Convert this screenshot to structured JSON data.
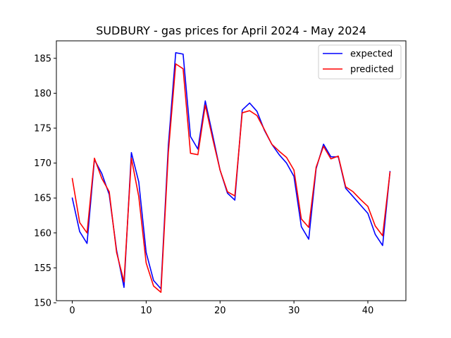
{
  "chart_data": {
    "type": "line",
    "title": "SUDBURY - gas prices for April 2024 - May 2024",
    "xlabel": "",
    "ylabel": "",
    "xlim": [
      -2.15,
      45.15
    ],
    "ylim": [
      150.3,
      187.5
    ],
    "x_ticks": [
      0,
      10,
      20,
      30,
      40
    ],
    "y_ticks": [
      150,
      155,
      160,
      165,
      170,
      175,
      180,
      185
    ],
    "grid": false,
    "legend_position": "top-right",
    "x": [
      0,
      1,
      2,
      3,
      4,
      5,
      6,
      7,
      8,
      9,
      10,
      11,
      12,
      13,
      14,
      15,
      16,
      17,
      18,
      19,
      20,
      21,
      22,
      23,
      24,
      25,
      26,
      27,
      28,
      29,
      30,
      31,
      32,
      33,
      34,
      35,
      36,
      37,
      38,
      39,
      40,
      41,
      42,
      43
    ],
    "series": [
      {
        "name": "expected",
        "color": "#0000ff",
        "values": [
          165.0,
          160.2,
          158.5,
          170.5,
          168.5,
          165.5,
          157.5,
          152.2,
          171.5,
          167.3,
          157.2,
          153.2,
          152.0,
          172.5,
          185.8,
          185.6,
          173.8,
          172.0,
          178.9,
          174.0,
          169.0,
          165.7,
          164.7,
          177.6,
          178.6,
          177.4,
          174.7,
          172.7,
          171.2,
          170.0,
          168.1,
          160.9,
          159.1,
          169.2,
          172.7,
          170.9,
          170.9,
          166.4,
          165.2,
          164.0,
          162.8,
          159.8,
          158.2,
          168.8
        ]
      },
      {
        "name": "predicted",
        "color": "#ff0000",
        "values": [
          167.8,
          161.5,
          160.0,
          170.7,
          167.8,
          165.9,
          157.2,
          153.0,
          170.7,
          165.2,
          155.7,
          152.4,
          151.5,
          171.5,
          184.2,
          183.5,
          171.4,
          171.2,
          178.3,
          173.5,
          169.0,
          165.9,
          165.3,
          177.2,
          177.5,
          176.8,
          174.8,
          172.7,
          171.7,
          170.8,
          169.0,
          162.0,
          160.8,
          169.4,
          172.4,
          170.6,
          171.0,
          166.6,
          165.9,
          164.8,
          163.8,
          161.0,
          159.6,
          168.7
        ]
      }
    ]
  }
}
